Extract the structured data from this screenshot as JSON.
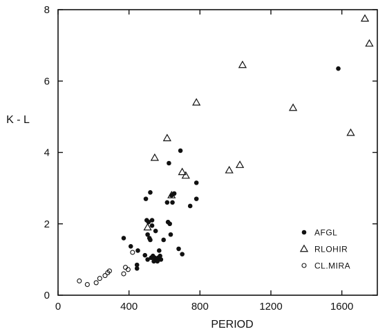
{
  "chart_data": {
    "type": "scatter",
    "xlabel": "PERIOD",
    "ylabel": "K - L",
    "xlim": [
      0,
      1800
    ],
    "ylim": [
      0,
      8
    ],
    "xticks": [
      0,
      400,
      800,
      1200,
      1600
    ],
    "yticks": [
      0,
      2,
      4,
      6,
      8
    ],
    "grid": false,
    "legend_position": "bottom-right",
    "series": [
      {
        "name": "AFGL",
        "marker": "filled-circle",
        "points": [
          [
            370,
            1.6
          ],
          [
            410,
            1.37
          ],
          [
            445,
            0.85
          ],
          [
            445,
            0.75
          ],
          [
            450,
            1.25
          ],
          [
            490,
            1.12
          ],
          [
            495,
            2.7
          ],
          [
            500,
            2.1
          ],
          [
            505,
            1.7
          ],
          [
            505,
            1.0
          ],
          [
            510,
            2.05
          ],
          [
            515,
            1.6
          ],
          [
            520,
            2.88
          ],
          [
            520,
            1.55
          ],
          [
            525,
            1.05
          ],
          [
            530,
            1.95
          ],
          [
            530,
            2.1
          ],
          [
            535,
            1.1
          ],
          [
            540,
            0.95
          ],
          [
            545,
            1.05
          ],
          [
            550,
            1.8
          ],
          [
            555,
            1.0
          ],
          [
            560,
            0.95
          ],
          [
            565,
            1.05
          ],
          [
            570,
            1.25
          ],
          [
            575,
            1.1
          ],
          [
            580,
            1.0
          ],
          [
            595,
            1.55
          ],
          [
            615,
            2.6
          ],
          [
            620,
            2.05
          ],
          [
            625,
            3.7
          ],
          [
            630,
            2.0
          ],
          [
            635,
            1.7
          ],
          [
            640,
            2.8
          ],
          [
            645,
            2.6
          ],
          [
            655,
            2.85
          ],
          [
            680,
            1.3
          ],
          [
            690,
            4.05
          ],
          [
            700,
            1.15
          ],
          [
            745,
            2.5
          ],
          [
            780,
            3.15
          ],
          [
            780,
            2.7
          ],
          [
            1580,
            6.35
          ]
        ]
      },
      {
        "name": "RLOHIR",
        "marker": "open-triangle",
        "points": [
          [
            505,
            1.9
          ],
          [
            545,
            3.85
          ],
          [
            615,
            4.4
          ],
          [
            640,
            2.8
          ],
          [
            700,
            3.45
          ],
          [
            720,
            3.35
          ],
          [
            780,
            5.4
          ],
          [
            965,
            3.5
          ],
          [
            1025,
            3.65
          ],
          [
            1040,
            6.45
          ],
          [
            1325,
            5.25
          ],
          [
            1650,
            4.55
          ],
          [
            1730,
            7.75
          ],
          [
            1755,
            7.05
          ]
        ]
      },
      {
        "name": "CL.MIRA",
        "marker": "open-circle",
        "points": [
          [
            120,
            0.4
          ],
          [
            165,
            0.3
          ],
          [
            215,
            0.35
          ],
          [
            235,
            0.47
          ],
          [
            265,
            0.55
          ],
          [
            280,
            0.63
          ],
          [
            290,
            0.68
          ],
          [
            370,
            0.6
          ],
          [
            380,
            0.78
          ],
          [
            395,
            0.72
          ],
          [
            420,
            1.2
          ]
        ]
      }
    ]
  }
}
